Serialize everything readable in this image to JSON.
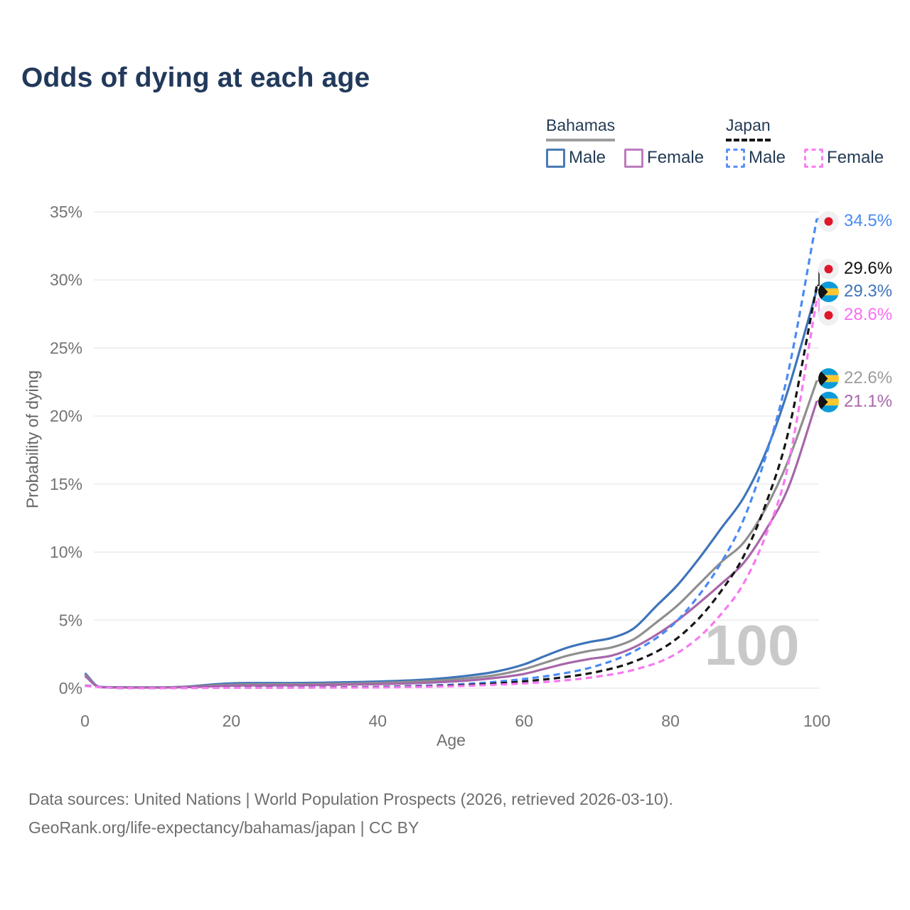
{
  "title": "Odds of dying at each age",
  "legend": {
    "groups": [
      {
        "country": "Bahamas",
        "line_style": "solid",
        "line_color": "#9e9e9e",
        "items": [
          {
            "label": "Male",
            "color": "#4a7ab5",
            "box_style": "solid"
          },
          {
            "label": "Female",
            "color": "#bd7cbe",
            "box_style": "solid"
          }
        ]
      },
      {
        "country": "Japan",
        "line_style": "dashed",
        "line_color": "#151515",
        "items": [
          {
            "label": "Male",
            "color": "#5b8ff9",
            "box_style": "dashed"
          },
          {
            "label": "Female",
            "color": "#fb7df5",
            "box_style": "dashed"
          }
        ]
      }
    ]
  },
  "age_counter": "100",
  "footer": {
    "line1": "Data sources: United Nations | World Population Prospects (2026, retrieved 2026-03-10).",
    "line2": "GeoRank.org/life-expectancy/bahamas/japan | CC BY"
  },
  "chart_data": {
    "type": "line",
    "title": "Odds of dying at each age",
    "xlabel": "Age",
    "ylabel": "Probability of dying",
    "xlim": [
      0,
      100
    ],
    "ylim": [
      0,
      35
    ],
    "xticks": [
      0,
      20,
      40,
      60,
      80,
      100
    ],
    "ytick_labels": [
      "0%",
      "5%",
      "10%",
      "15%",
      "20%",
      "25%",
      "30%",
      "35%"
    ],
    "grid": true,
    "legend_position": "top-right",
    "y_unit": "percent",
    "series": [
      {
        "name": "Bahamas Male",
        "country": "Bahamas",
        "sex": "male",
        "flag": "bahamas",
        "dash": "solid",
        "color": "#3e74ba",
        "label_color": "#3e74ba",
        "end_label": "29.3%",
        "end_value": 29.3,
        "points": [
          [
            0,
            1.1
          ],
          [
            2,
            0.1
          ],
          [
            5,
            0.07
          ],
          [
            10,
            0.06
          ],
          [
            14,
            0.12
          ],
          [
            18,
            0.3
          ],
          [
            22,
            0.38
          ],
          [
            27,
            0.38
          ],
          [
            32,
            0.4
          ],
          [
            37,
            0.45
          ],
          [
            42,
            0.52
          ],
          [
            47,
            0.65
          ],
          [
            52,
            0.9
          ],
          [
            56,
            1.2
          ],
          [
            60,
            1.75
          ],
          [
            63,
            2.4
          ],
          [
            66,
            3.0
          ],
          [
            69,
            3.4
          ],
          [
            72,
            3.7
          ],
          [
            75,
            4.4
          ],
          [
            78,
            6.0
          ],
          [
            81,
            7.6
          ],
          [
            84,
            9.6
          ],
          [
            87,
            11.8
          ],
          [
            90,
            14.0
          ],
          [
            93,
            17.3
          ],
          [
            96,
            21.8
          ],
          [
            100,
            29.3
          ]
        ]
      },
      {
        "name": "Bahamas Total",
        "country": "Bahamas",
        "sex": "both",
        "flag": "bahamas",
        "dash": "solid",
        "color": "#8f8f8f",
        "label_color": "#9b9b9b",
        "end_label": "22.6%",
        "end_value": 22.6,
        "points": [
          [
            0,
            1.0
          ],
          [
            2,
            0.09
          ],
          [
            5,
            0.06
          ],
          [
            10,
            0.05
          ],
          [
            14,
            0.1
          ],
          [
            18,
            0.22
          ],
          [
            22,
            0.28
          ],
          [
            27,
            0.29
          ],
          [
            32,
            0.31
          ],
          [
            37,
            0.35
          ],
          [
            42,
            0.42
          ],
          [
            47,
            0.52
          ],
          [
            52,
            0.72
          ],
          [
            56,
            0.95
          ],
          [
            60,
            1.4
          ],
          [
            63,
            1.9
          ],
          [
            66,
            2.4
          ],
          [
            69,
            2.75
          ],
          [
            72,
            3.0
          ],
          [
            75,
            3.6
          ],
          [
            78,
            4.8
          ],
          [
            81,
            6.1
          ],
          [
            84,
            7.7
          ],
          [
            87,
            9.3
          ],
          [
            90,
            10.7
          ],
          [
            93,
            13.2
          ],
          [
            96,
            16.6
          ],
          [
            100,
            22.6
          ]
        ]
      },
      {
        "name": "Bahamas Female",
        "country": "Bahamas",
        "sex": "female",
        "flag": "bahamas",
        "dash": "solid",
        "color": "#a766a9",
        "label_color": "#a766a9",
        "end_label": "21.1%",
        "end_value": 21.1,
        "points": [
          [
            0,
            0.9
          ],
          [
            2,
            0.08
          ],
          [
            5,
            0.05
          ],
          [
            10,
            0.04
          ],
          [
            14,
            0.08
          ],
          [
            18,
            0.15
          ],
          [
            22,
            0.2
          ],
          [
            27,
            0.21
          ],
          [
            32,
            0.23
          ],
          [
            37,
            0.27
          ],
          [
            42,
            0.32
          ],
          [
            47,
            0.4
          ],
          [
            52,
            0.55
          ],
          [
            56,
            0.75
          ],
          [
            60,
            1.05
          ],
          [
            63,
            1.45
          ],
          [
            66,
            1.85
          ],
          [
            69,
            2.15
          ],
          [
            72,
            2.4
          ],
          [
            75,
            3.0
          ],
          [
            78,
            3.9
          ],
          [
            81,
            5.0
          ],
          [
            84,
            6.3
          ],
          [
            87,
            7.7
          ],
          [
            90,
            9.2
          ],
          [
            93,
            11.6
          ],
          [
            96,
            14.6
          ],
          [
            100,
            21.1
          ]
        ]
      },
      {
        "name": "Japan Male",
        "country": "Japan",
        "sex": "male",
        "flag": "japan",
        "dash": "dashed",
        "color": "#4a8af4",
        "label_color": "#4a8af4",
        "end_label": "34.5%",
        "end_value": 34.5,
        "points": [
          [
            0,
            0.19
          ],
          [
            5,
            0.02
          ],
          [
            10,
            0.015
          ],
          [
            15,
            0.03
          ],
          [
            20,
            0.05
          ],
          [
            30,
            0.06
          ],
          [
            40,
            0.1
          ],
          [
            45,
            0.16
          ],
          [
            50,
            0.25
          ],
          [
            55,
            0.42
          ],
          [
            60,
            0.68
          ],
          [
            65,
            1.05
          ],
          [
            70,
            1.65
          ],
          [
            75,
            2.7
          ],
          [
            80,
            4.5
          ],
          [
            84,
            6.9
          ],
          [
            87,
            9.3
          ],
          [
            90,
            12.4
          ],
          [
            93,
            17.0
          ],
          [
            96,
            23.0
          ],
          [
            100,
            34.5
          ]
        ]
      },
      {
        "name": "Japan Total",
        "country": "Japan",
        "sex": "both",
        "flag": "japan",
        "dash": "dashed",
        "color": "#151515",
        "label_color": "#111111",
        "end_label": "29.6%",
        "end_value": 29.6,
        "points": [
          [
            0,
            0.17
          ],
          [
            5,
            0.018
          ],
          [
            10,
            0.013
          ],
          [
            15,
            0.025
          ],
          [
            20,
            0.04
          ],
          [
            30,
            0.05
          ],
          [
            40,
            0.08
          ],
          [
            45,
            0.12
          ],
          [
            50,
            0.19
          ],
          [
            55,
            0.31
          ],
          [
            60,
            0.5
          ],
          [
            65,
            0.78
          ],
          [
            70,
            1.2
          ],
          [
            75,
            1.95
          ],
          [
            80,
            3.3
          ],
          [
            84,
            5.2
          ],
          [
            87,
            7.2
          ],
          [
            90,
            9.7
          ],
          [
            93,
            13.5
          ],
          [
            96,
            18.6
          ],
          [
            100,
            29.6
          ]
        ]
      },
      {
        "name": "Japan Female",
        "country": "Japan",
        "sex": "female",
        "flag": "japan",
        "dash": "dashed",
        "color": "#f878f2",
        "label_color": "#f86ef2",
        "end_label": "28.6%",
        "end_value": 28.6,
        "points": [
          [
            0,
            0.16
          ],
          [
            5,
            0.015
          ],
          [
            10,
            0.01
          ],
          [
            15,
            0.02
          ],
          [
            20,
            0.03
          ],
          [
            30,
            0.04
          ],
          [
            40,
            0.06
          ],
          [
            45,
            0.09
          ],
          [
            50,
            0.14
          ],
          [
            55,
            0.23
          ],
          [
            60,
            0.35
          ],
          [
            65,
            0.55
          ],
          [
            70,
            0.85
          ],
          [
            75,
            1.35
          ],
          [
            80,
            2.3
          ],
          [
            84,
            3.8
          ],
          [
            87,
            5.5
          ],
          [
            90,
            7.7
          ],
          [
            93,
            11.2
          ],
          [
            96,
            16.2
          ],
          [
            100,
            28.6
          ]
        ]
      }
    ]
  }
}
